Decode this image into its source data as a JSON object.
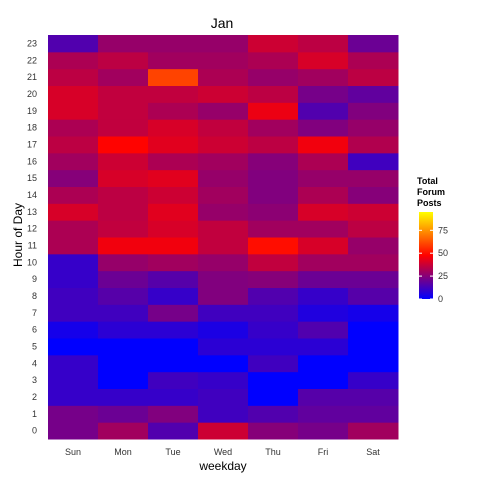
{
  "chart_data": {
    "type": "heatmap",
    "title": "Jan",
    "xlabel": "weekday",
    "ylabel": "Hour of Day",
    "x_categories": [
      "Sun",
      "Mon",
      "Tue",
      "Wed",
      "Thu",
      "Fri",
      "Sat"
    ],
    "y_categories": [
      "0",
      "1",
      "2",
      "3",
      "4",
      "5",
      "6",
      "7",
      "8",
      "9",
      "10",
      "11",
      "12",
      "13",
      "14",
      "15",
      "16",
      "17",
      "18",
      "19",
      "20",
      "21",
      "22",
      "23"
    ],
    "values": [
      [
        22,
        30,
        15,
        38,
        25,
        22,
        30
      ],
      [
        22,
        20,
        24,
        12,
        15,
        18,
        18
      ],
      [
        10,
        10,
        10,
        12,
        0,
        16,
        16
      ],
      [
        10,
        0,
        12,
        10,
        0,
        0,
        10
      ],
      [
        10,
        0,
        0,
        0,
        12,
        0,
        0
      ],
      [
        0,
        0,
        0,
        8,
        8,
        8,
        0
      ],
      [
        4,
        8,
        8,
        5,
        10,
        15,
        0
      ],
      [
        12,
        12,
        22,
        12,
        12,
        6,
        4
      ],
      [
        12,
        16,
        10,
        24,
        15,
        10,
        16
      ],
      [
        10,
        20,
        16,
        24,
        25,
        20,
        20
      ],
      [
        10,
        28,
        30,
        28,
        36,
        30,
        30
      ],
      [
        32,
        45,
        45,
        36,
        50,
        40,
        28
      ],
      [
        32,
        36,
        40,
        36,
        30,
        30,
        35
      ],
      [
        40,
        35,
        42,
        28,
        26,
        40,
        38
      ],
      [
        32,
        35,
        38,
        30,
        24,
        32,
        25
      ],
      [
        25,
        40,
        42,
        28,
        24,
        28,
        28
      ],
      [
        30,
        38,
        32,
        30,
        25,
        32,
        12
      ],
      [
        35,
        48,
        42,
        38,
        35,
        45,
        33
      ],
      [
        32,
        36,
        40,
        36,
        30,
        24,
        28
      ],
      [
        40,
        36,
        32,
        28,
        44,
        15,
        24
      ],
      [
        40,
        36,
        36,
        38,
        35,
        22,
        18
      ],
      [
        35,
        30,
        60,
        32,
        28,
        30,
        35
      ],
      [
        32,
        35,
        30,
        30,
        32,
        40,
        32
      ],
      [
        15,
        28,
        28,
        28,
        38,
        35,
        20
      ]
    ],
    "legend": {
      "title_lines": [
        "Total",
        "Forum",
        "Posts"
      ],
      "ticks": [
        0,
        25,
        50,
        75
      ],
      "range": [
        0,
        95
      ]
    },
    "color_scale": [
      "#0000ff",
      "#ff0000",
      "#ffff00"
    ],
    "grid": false,
    "legend_position": "right"
  }
}
